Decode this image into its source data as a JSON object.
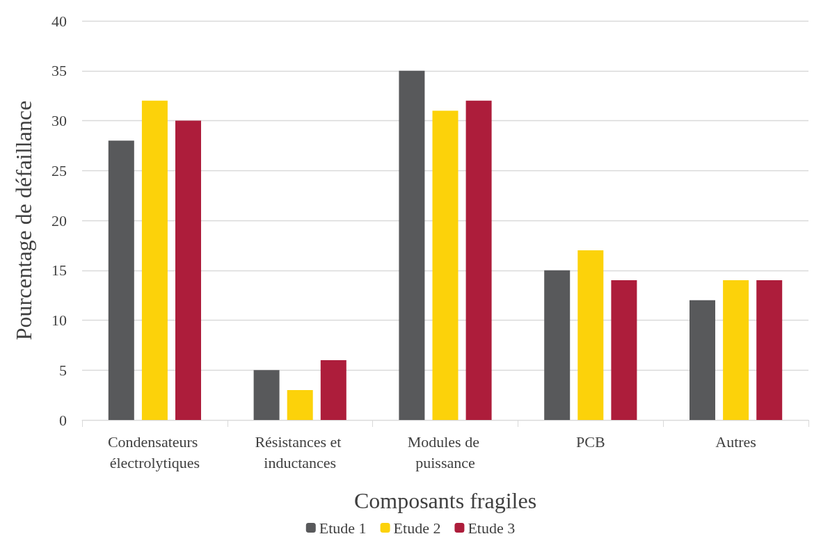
{
  "chart_data": {
    "type": "bar",
    "xlabel": "Composants fragiles",
    "ylabel": "Pourcentage de défaillance",
    "categories": [
      "Condensateurs électrolytiques",
      "Résistances et inductances",
      "Modules de puissance",
      "PCB",
      "Autres"
    ],
    "series": [
      {
        "name": "Etude 1",
        "color": "#58595b",
        "values": [
          28,
          5,
          35,
          15,
          12
        ]
      },
      {
        "name": "Etude 2",
        "color": "#fcd20a",
        "values": [
          32,
          3,
          31,
          17,
          14
        ]
      },
      {
        "name": "Etude 3",
        "color": "#ad1d3b",
        "values": [
          30,
          6,
          32,
          14,
          14
        ]
      }
    ],
    "ylim": [
      0,
      40
    ],
    "yticks": [
      0,
      5,
      10,
      15,
      20,
      25,
      30,
      35,
      40
    ],
    "grid": "y",
    "legend": "bottom"
  }
}
